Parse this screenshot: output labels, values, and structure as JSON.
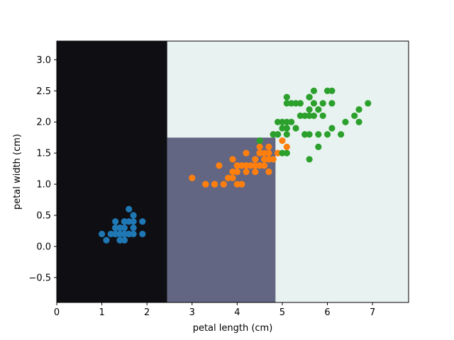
{
  "chart_data": {
    "type": "scatter",
    "title": "",
    "xlabel": "petal length (cm)",
    "ylabel": "petal width (cm)",
    "xlim": [
      0,
      7.8
    ],
    "ylim": [
      -0.9,
      3.3
    ],
    "x_ticks": [
      0,
      1,
      2,
      3,
      4,
      5,
      6,
      7
    ],
    "x_tick_labels": [
      "0",
      "1",
      "2",
      "3",
      "4",
      "5",
      "6",
      "7"
    ],
    "y_ticks": [
      -0.5,
      0.0,
      0.5,
      1.0,
      1.5,
      2.0,
      2.5,
      3.0
    ],
    "y_tick_labels": [
      "−0.5",
      "0.0",
      "0.5",
      "1.0",
      "1.5",
      "2.0",
      "2.5",
      "3.0"
    ],
    "grid": false,
    "legend": "none",
    "background_regions": [
      {
        "x": [
          0,
          2.45
        ],
        "y": [
          -0.9,
          3.3
        ],
        "color": "#0f0f13"
      },
      {
        "x": [
          2.45,
          4.85
        ],
        "y": [
          -0.9,
          1.75
        ],
        "color": "#636682"
      },
      {
        "x": [
          2.45,
          7.8
        ],
        "y": [
          1.75,
          3.3
        ],
        "color": "#e8f2f0"
      },
      {
        "x": [
          4.85,
          7.8
        ],
        "y": [
          -0.9,
          1.75
        ],
        "color": "#e8f2f0"
      }
    ],
    "series": [
      {
        "color": "#1f77b4",
        "points": [
          [
            1.4,
            0.2
          ],
          [
            1.4,
            0.2
          ],
          [
            1.3,
            0.2
          ],
          [
            1.5,
            0.2
          ],
          [
            1.4,
            0.2
          ],
          [
            1.7,
            0.4
          ],
          [
            1.4,
            0.3
          ],
          [
            1.5,
            0.2
          ],
          [
            1.4,
            0.2
          ],
          [
            1.5,
            0.1
          ],
          [
            1.5,
            0.2
          ],
          [
            1.6,
            0.2
          ],
          [
            1.4,
            0.1
          ],
          [
            1.1,
            0.1
          ],
          [
            1.2,
            0.2
          ],
          [
            1.5,
            0.4
          ],
          [
            1.3,
            0.4
          ],
          [
            1.4,
            0.3
          ],
          [
            1.7,
            0.3
          ],
          [
            1.5,
            0.3
          ],
          [
            1.7,
            0.2
          ],
          [
            1.5,
            0.4
          ],
          [
            1.0,
            0.2
          ],
          [
            1.7,
            0.5
          ],
          [
            1.9,
            0.2
          ],
          [
            1.6,
            0.2
          ],
          [
            1.6,
            0.4
          ],
          [
            1.5,
            0.2
          ],
          [
            1.4,
            0.2
          ],
          [
            1.6,
            0.2
          ],
          [
            1.6,
            0.2
          ],
          [
            1.5,
            0.4
          ],
          [
            1.5,
            0.1
          ],
          [
            1.4,
            0.2
          ],
          [
            1.5,
            0.2
          ],
          [
            1.2,
            0.2
          ],
          [
            1.3,
            0.2
          ],
          [
            1.4,
            0.1
          ],
          [
            1.3,
            0.2
          ],
          [
            1.5,
            0.2
          ],
          [
            1.3,
            0.3
          ],
          [
            1.3,
            0.3
          ],
          [
            1.3,
            0.2
          ],
          [
            1.6,
            0.6
          ],
          [
            1.9,
            0.4
          ],
          [
            1.4,
            0.3
          ],
          [
            1.6,
            0.2
          ],
          [
            1.4,
            0.2
          ],
          [
            1.5,
            0.2
          ],
          [
            1.4,
            0.2
          ]
        ]
      },
      {
        "color": "#ff7f0e",
        "points": [
          [
            4.7,
            1.4
          ],
          [
            4.5,
            1.5
          ],
          [
            4.9,
            1.5
          ],
          [
            4.0,
            1.3
          ],
          [
            4.6,
            1.5
          ],
          [
            4.5,
            1.3
          ],
          [
            4.7,
            1.6
          ],
          [
            3.3,
            1.0
          ],
          [
            4.6,
            1.3
          ],
          [
            3.9,
            1.4
          ],
          [
            3.5,
            1.0
          ],
          [
            4.2,
            1.5
          ],
          [
            4.0,
            1.0
          ],
          [
            4.7,
            1.4
          ],
          [
            3.6,
            1.3
          ],
          [
            4.4,
            1.4
          ],
          [
            4.5,
            1.5
          ],
          [
            4.1,
            1.0
          ],
          [
            4.5,
            1.5
          ],
          [
            3.9,
            1.1
          ],
          [
            4.8,
            1.8
          ],
          [
            4.0,
            1.3
          ],
          [
            4.9,
            1.5
          ],
          [
            4.7,
            1.2
          ],
          [
            4.3,
            1.3
          ],
          [
            4.4,
            1.4
          ],
          [
            4.8,
            1.4
          ],
          [
            5.0,
            1.7
          ],
          [
            4.5,
            1.5
          ],
          [
            3.5,
            1.0
          ],
          [
            3.8,
            1.1
          ],
          [
            3.7,
            1.0
          ],
          [
            3.9,
            1.2
          ],
          [
            5.1,
            1.6
          ],
          [
            4.5,
            1.5
          ],
          [
            4.5,
            1.6
          ],
          [
            4.7,
            1.5
          ],
          [
            4.4,
            1.3
          ],
          [
            4.1,
            1.3
          ],
          [
            4.0,
            1.3
          ],
          [
            4.4,
            1.2
          ],
          [
            4.6,
            1.4
          ],
          [
            4.0,
            1.2
          ],
          [
            3.3,
            1.0
          ],
          [
            4.2,
            1.3
          ],
          [
            4.2,
            1.2
          ],
          [
            4.2,
            1.3
          ],
          [
            4.3,
            1.3
          ],
          [
            3.0,
            1.1
          ],
          [
            4.1,
            1.3
          ]
        ]
      },
      {
        "color": "#2ca02c",
        "points": [
          [
            6.0,
            2.5
          ],
          [
            5.1,
            1.9
          ],
          [
            5.9,
            2.1
          ],
          [
            5.6,
            1.8
          ],
          [
            5.8,
            2.2
          ],
          [
            6.6,
            2.1
          ],
          [
            4.5,
            1.7
          ],
          [
            6.3,
            1.8
          ],
          [
            5.8,
            1.8
          ],
          [
            6.1,
            2.5
          ],
          [
            5.1,
            2.0
          ],
          [
            5.3,
            1.9
          ],
          [
            5.5,
            2.1
          ],
          [
            5.0,
            2.0
          ],
          [
            5.1,
            2.4
          ],
          [
            5.3,
            2.3
          ],
          [
            5.5,
            1.8
          ],
          [
            6.7,
            2.2
          ],
          [
            6.9,
            2.3
          ],
          [
            5.0,
            1.5
          ],
          [
            5.7,
            2.3
          ],
          [
            4.9,
            2.0
          ],
          [
            6.7,
            2.0
          ],
          [
            4.9,
            1.8
          ],
          [
            5.7,
            2.1
          ],
          [
            6.0,
            1.8
          ],
          [
            4.8,
            1.8
          ],
          [
            4.9,
            1.8
          ],
          [
            5.6,
            2.1
          ],
          [
            5.8,
            1.6
          ],
          [
            6.1,
            1.9
          ],
          [
            6.4,
            2.0
          ],
          [
            5.6,
            2.2
          ],
          [
            5.1,
            1.5
          ],
          [
            5.6,
            1.4
          ],
          [
            6.1,
            2.3
          ],
          [
            5.6,
            2.4
          ],
          [
            5.5,
            1.8
          ],
          [
            4.8,
            1.8
          ],
          [
            5.4,
            2.1
          ],
          [
            5.6,
            2.4
          ],
          [
            5.1,
            2.3
          ],
          [
            5.1,
            1.9
          ],
          [
            5.9,
            2.3
          ],
          [
            5.7,
            2.5
          ],
          [
            5.2,
            2.3
          ],
          [
            5.0,
            1.9
          ],
          [
            5.2,
            2.0
          ],
          [
            5.4,
            2.3
          ],
          [
            5.1,
            1.8
          ]
        ]
      }
    ]
  }
}
